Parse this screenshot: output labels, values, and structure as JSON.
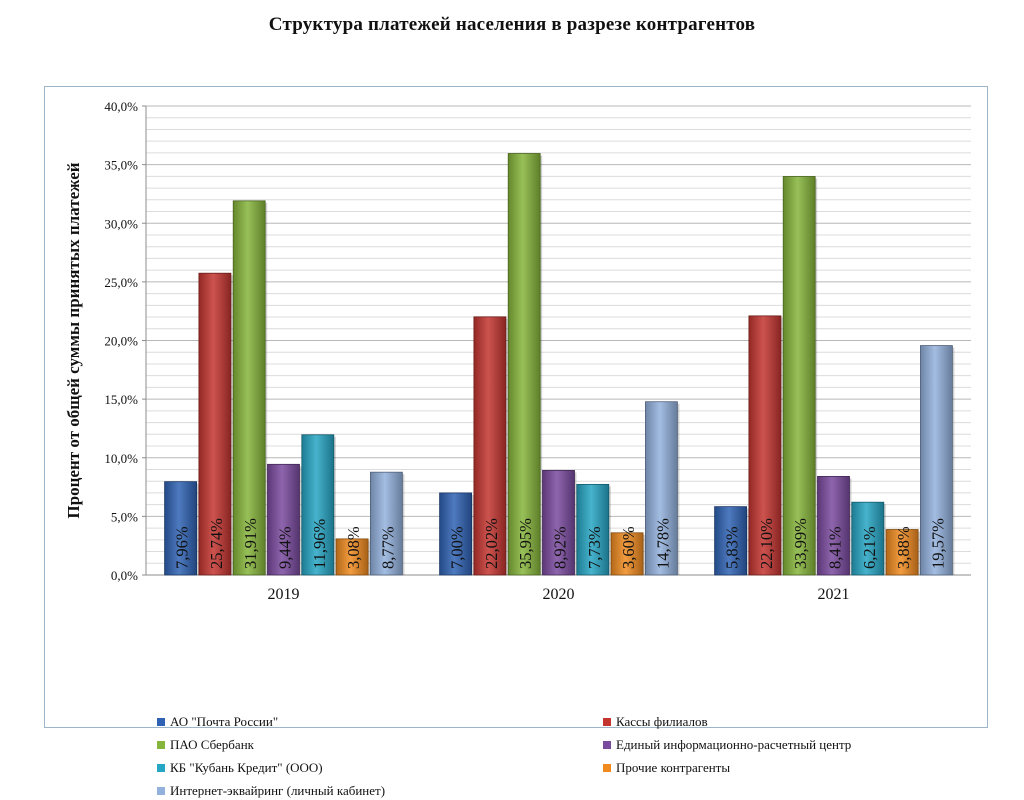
{
  "chart_data": {
    "type": "bar",
    "title": "Структура платежей населения в разрезе контрагентов",
    "ylabel": "Процент от общей суммы принятых платежей",
    "xlabel": "",
    "categories": [
      "2019",
      "2020",
      "2021"
    ],
    "ylim": [
      0,
      40
    ],
    "ytick_step": 5,
    "ytick_labels": [
      "0,0%",
      "5,0%",
      "10,0%",
      "15,0%",
      "20,0%",
      "25,0%",
      "30,0%",
      "35,0%",
      "40,0%"
    ],
    "grid": true,
    "legend_position": "bottom",
    "series": [
      {
        "name": "АО \"Почта России\"",
        "color": "#2f62b4",
        "values": [
          7.96,
          7.0,
          5.83
        ],
        "labels": [
          "7,96%",
          "7,00%",
          "5,83%"
        ]
      },
      {
        "name": "Кассы филиалов",
        "color": "#c43530",
        "values": [
          25.74,
          22.02,
          22.1
        ],
        "labels": [
          "25,74%",
          "22,02%",
          "22,10%"
        ]
      },
      {
        "name": "ПАО Сбербанк",
        "color": "#86b53b",
        "values": [
          31.91,
          35.95,
          33.99
        ],
        "labels": [
          "31,91%",
          "35,95%",
          "33,99%"
        ]
      },
      {
        "name": "Единый информационно-расчетный центр",
        "color": "#7a4a9e",
        "values": [
          9.44,
          8.92,
          8.41
        ],
        "labels": [
          "9,44%",
          "8,92%",
          "8,41%"
        ]
      },
      {
        "name": "КБ \"Кубань Кредит\" (ООО)",
        "color": "#27a5c4",
        "values": [
          11.96,
          7.73,
          6.21
        ],
        "labels": [
          "11,96%",
          "7,73%",
          "6,21%"
        ]
      },
      {
        "name": "Прочие контрагенты",
        "color": "#f08a1f",
        "values": [
          3.08,
          3.6,
          3.88
        ],
        "labels": [
          "3,08%",
          "3,60%",
          "3,88%"
        ]
      },
      {
        "name": "Интернет-эквайринг  (личный кабинет)",
        "color": "#93b1dd",
        "values": [
          8.77,
          14.78,
          19.57
        ],
        "labels": [
          "8,77%",
          "14,78%",
          "19,57%"
        ]
      }
    ]
  }
}
